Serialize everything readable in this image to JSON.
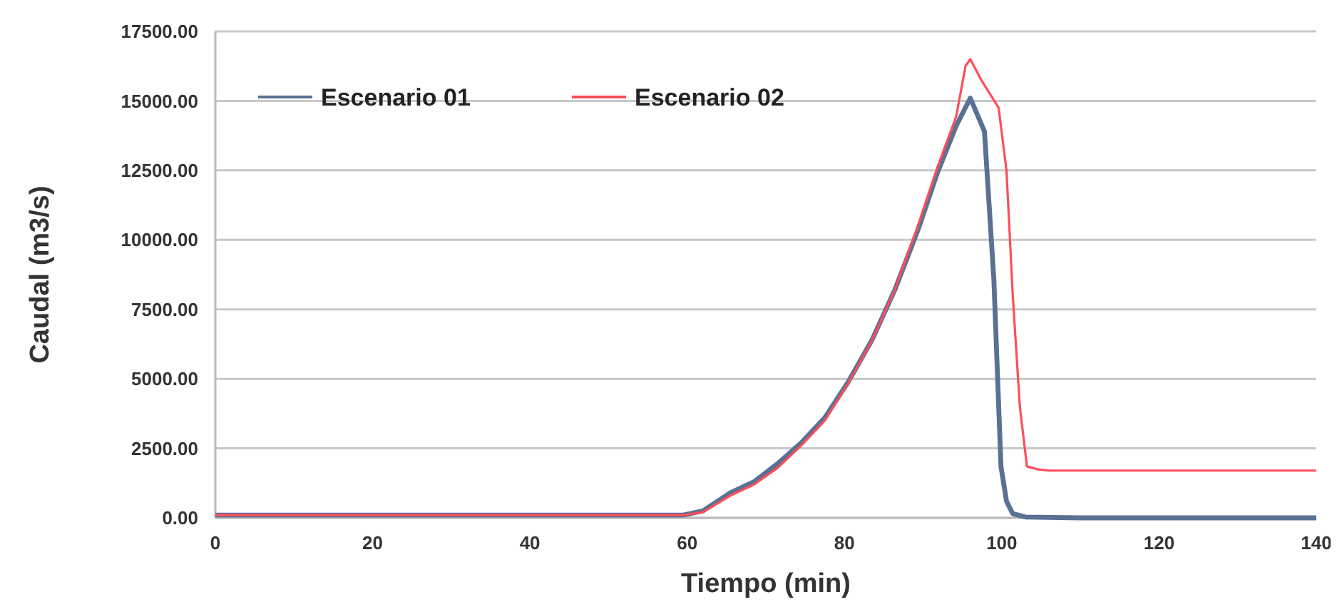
{
  "chart_data": {
    "type": "line",
    "xlabel": "Tiempo (min)",
    "ylabel": "Caudal (m3/s)",
    "xlim": [
      0,
      140
    ],
    "ylim": [
      0,
      17500
    ],
    "xticks": [
      0,
      20,
      40,
      60,
      80,
      100,
      120,
      140
    ],
    "yticks": [
      {
        "value": 0,
        "label": "0.00"
      },
      {
        "value": 2500,
        "label": "2500.00"
      },
      {
        "value": 5000,
        "label": "5000.00"
      },
      {
        "value": 7500,
        "label": "7500.00"
      },
      {
        "value": 10000,
        "label": "10000.00"
      },
      {
        "value": 12500,
        "label": "12500.00"
      },
      {
        "value": 15000,
        "label": "15000.00"
      },
      {
        "value": 17500,
        "label": "17500.00"
      }
    ],
    "grid": "y",
    "legend": "top left",
    "line_style": "solid",
    "marker": "none",
    "series": [
      {
        "name": "Escenario 01",
        "color": "#5a7194",
        "x": [
          0,
          59.5,
          62,
          65.5,
          68.5,
          71.5,
          74.5,
          77.5,
          80.5,
          83.5,
          86.4,
          89.4,
          91.8,
          94.2,
          96,
          97.8,
          99,
          99.9,
          100.6,
          101.4,
          103,
          110,
          140
        ],
        "values": [
          100,
          100,
          250,
          900,
          1300,
          1950,
          2700,
          3600,
          4900,
          6400,
          8200,
          10400,
          12400,
          14100,
          15100,
          13900,
          8550,
          1850,
          600,
          150,
          30,
          0,
          0
        ]
      },
      {
        "name": "Escenario 02",
        "color": "#ff4d5a",
        "x": [
          0,
          59.5,
          62,
          65.5,
          68.5,
          71.5,
          74.5,
          77.5,
          80.5,
          83.5,
          86.4,
          89.4,
          91.8,
          94.2,
          95.4,
          96,
          97.5,
          99.6,
          100.6,
          101.4,
          102.3,
          103.2,
          104.5,
          106,
          110,
          140
        ],
        "values": [
          100,
          100,
          200,
          800,
          1200,
          1800,
          2600,
          3500,
          4850,
          6370,
          8200,
          10560,
          12600,
          14430,
          16260,
          16500,
          15700,
          14750,
          12500,
          8000,
          4000,
          1850,
          1750,
          1700,
          1700,
          1700
        ]
      }
    ]
  }
}
